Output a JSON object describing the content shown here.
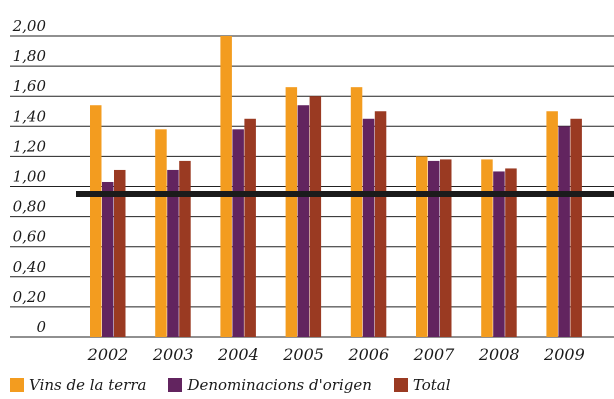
{
  "chart_data": {
    "type": "bar",
    "categories": [
      "2002",
      "2003",
      "2004",
      "2005",
      "2006",
      "2007",
      "2008",
      "2009"
    ],
    "series": [
      {
        "name": "Vins de la terra",
        "color": "#f39c1f",
        "values": [
          1.54,
          1.38,
          2.0,
          1.66,
          1.66,
          1.2,
          1.18,
          1.5
        ]
      },
      {
        "name": "Denominacions d'origen",
        "color": "#62245f",
        "values": [
          1.03,
          1.11,
          1.38,
          1.54,
          1.45,
          1.17,
          1.1,
          1.4
        ]
      },
      {
        "name": "Total",
        "color": "#9a3a22",
        "values": [
          1.11,
          1.17,
          1.45,
          1.6,
          1.5,
          1.18,
          1.12,
          1.45
        ]
      }
    ],
    "y_ticks": [
      "2,00",
      "1,80",
      "1,60",
      "1,40",
      "1,20",
      "1,00",
      "0,80",
      "0,60",
      "0,40",
      "0,20",
      "0"
    ],
    "ylim": [
      0,
      2.0
    ],
    "reference_line": 0.95,
    "grid": true,
    "legend_position": "bottom"
  }
}
